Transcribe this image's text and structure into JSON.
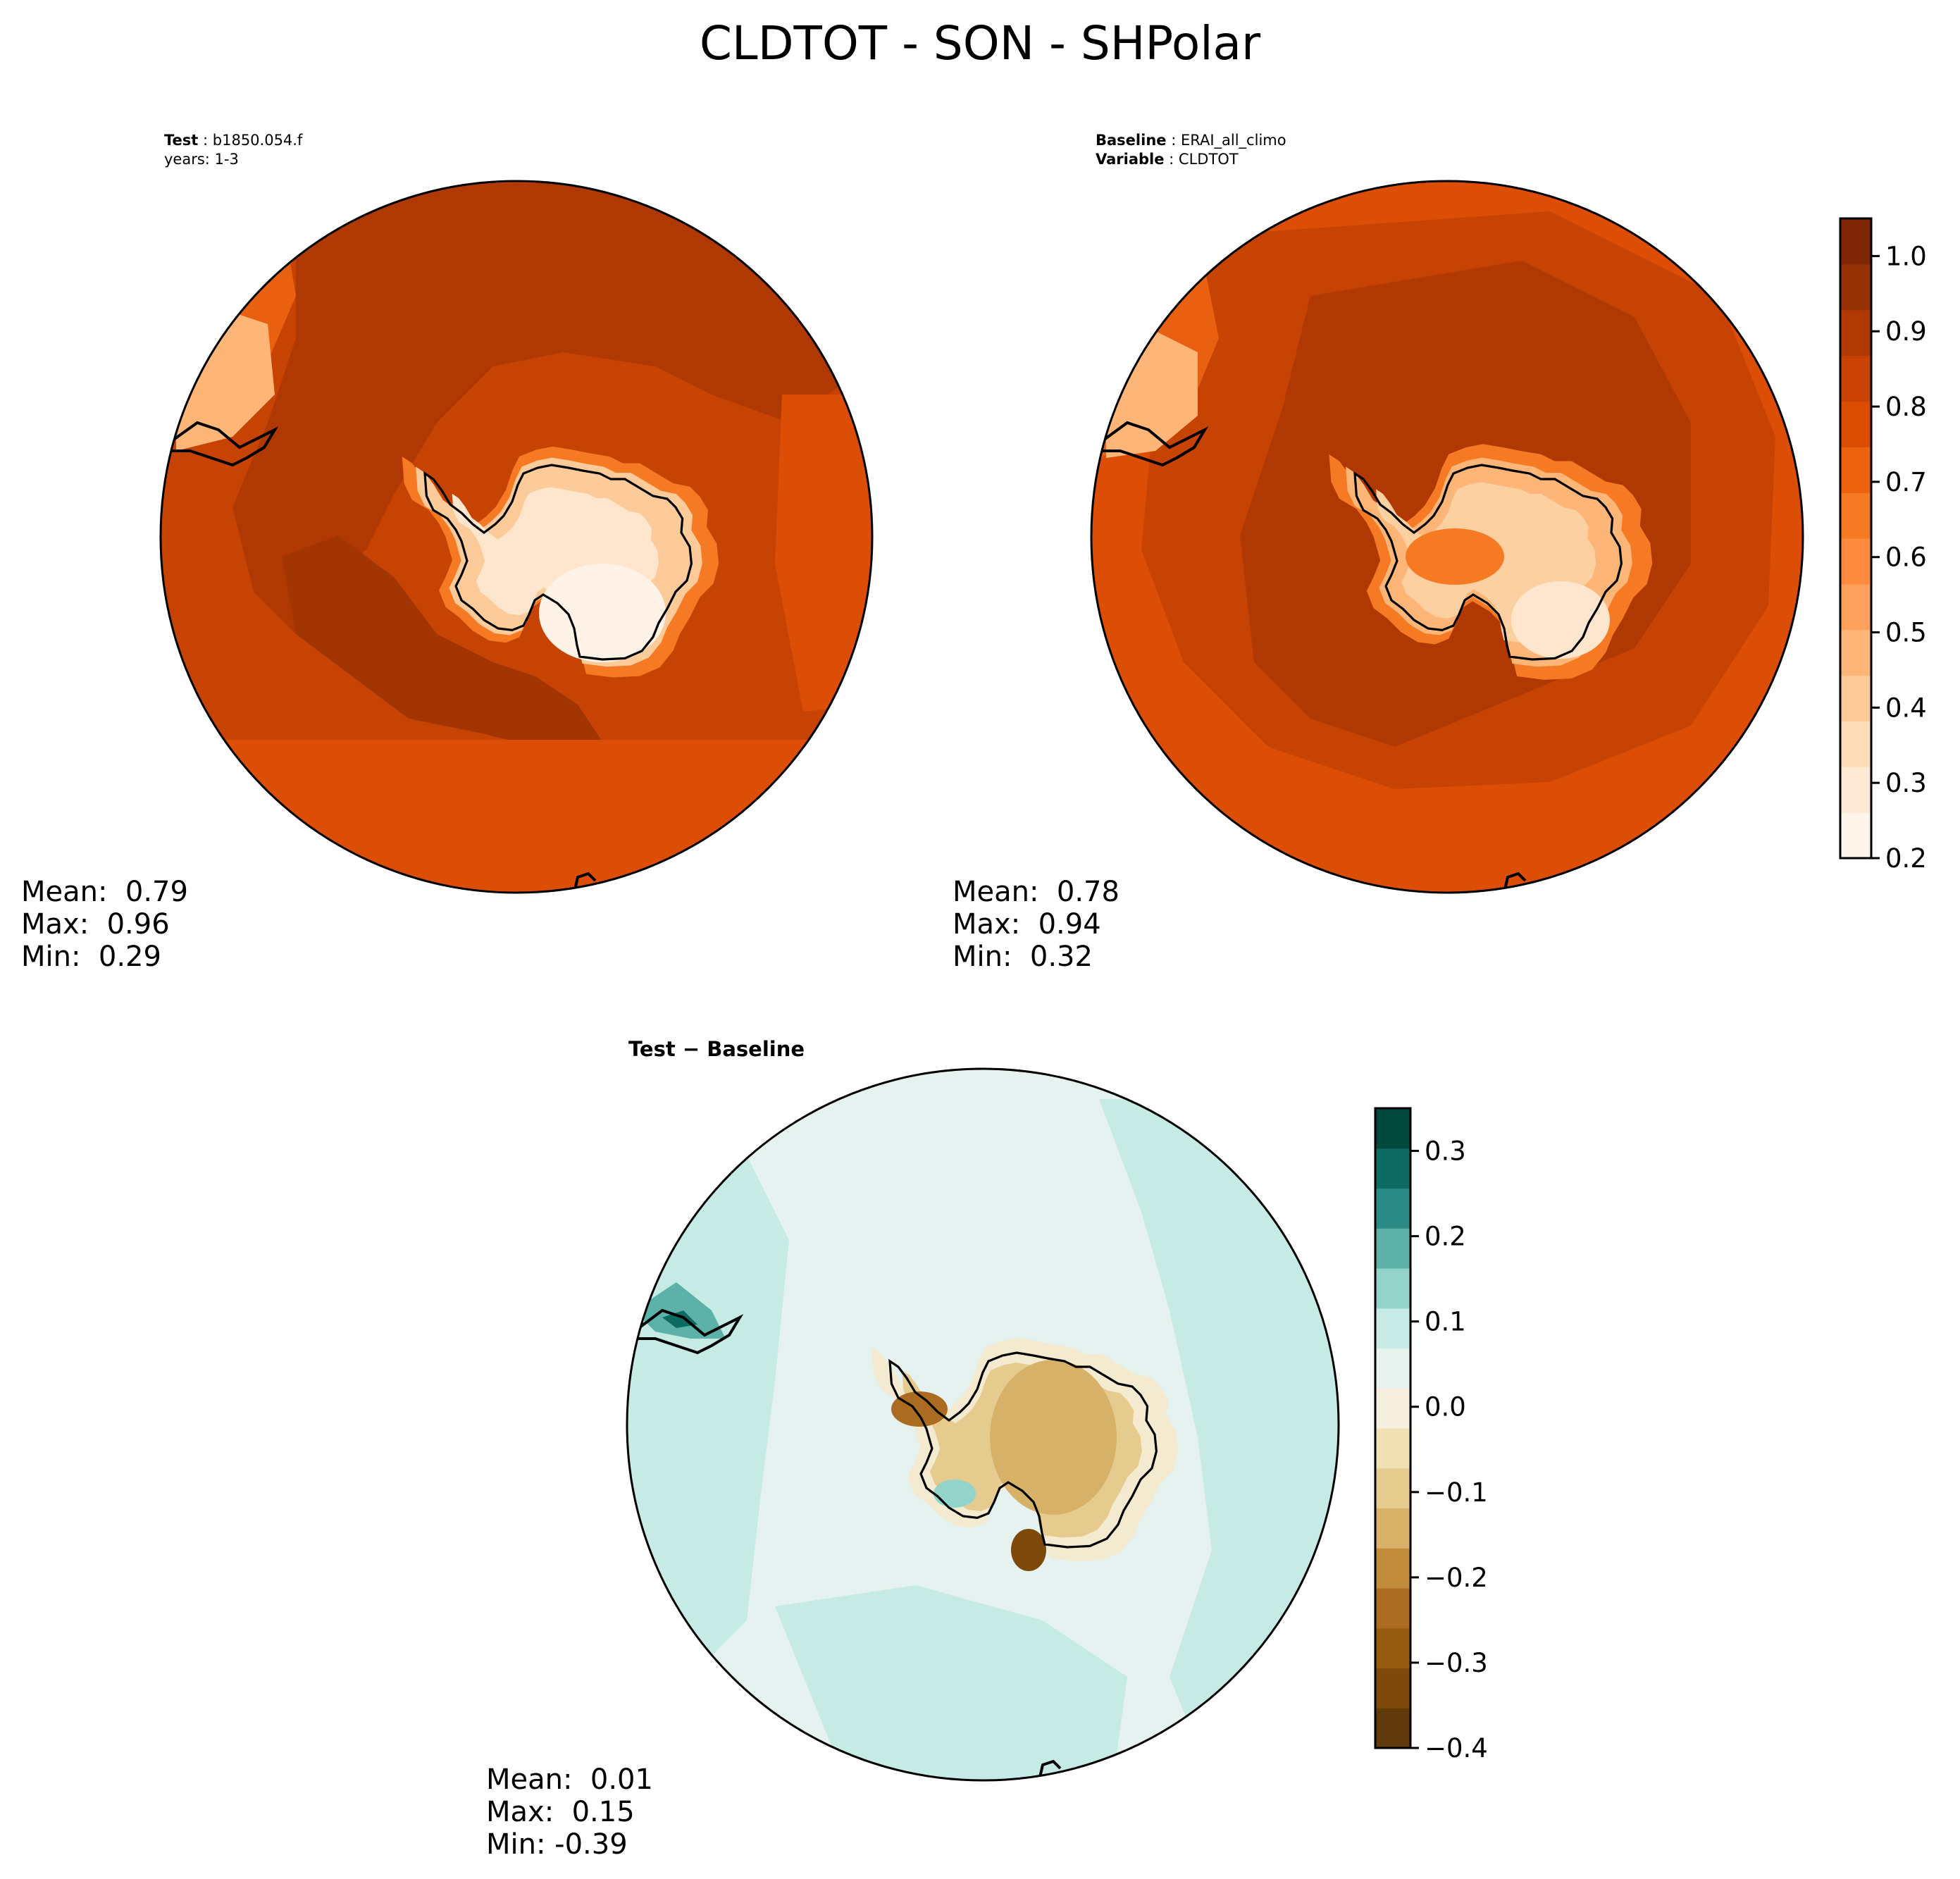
{
  "figure": {
    "title": "CLDTOT - SON - SHPolar"
  },
  "panels": {
    "test": {
      "label_key": "Test",
      "label_value": "b1850.054.f",
      "line2": "years: 1-3",
      "mean": "Mean:  0.79",
      "max": "Max:  0.96",
      "min": "Min:  0.29"
    },
    "baseline": {
      "label_key": "Baseline",
      "label_value": "ERAI_all_climo",
      "line2_key": "Variable",
      "line2_value": "CLDTOT",
      "mean": "Mean:  0.78",
      "max": "Max:  0.94",
      "min": "Min:  0.32"
    },
    "diff": {
      "title_a": "Test",
      "title_sep": " − ",
      "title_b": "Baseline",
      "mean": "Mean:  0.01",
      "max": "Max:  0.15",
      "min": "Min: -0.39"
    }
  },
  "chart_data": [
    {
      "type": "heatmap",
      "name": "Test",
      "projection": "south-polar-stereographic",
      "field": "CLDTOT",
      "mean": 0.79,
      "max": 0.96,
      "min": 0.29,
      "colormap": "Oranges",
      "vlim": [
        0.2,
        1.05
      ]
    },
    {
      "type": "heatmap",
      "name": "Baseline",
      "projection": "south-polar-stereographic",
      "field": "CLDTOT",
      "mean": 0.78,
      "max": 0.94,
      "min": 0.32,
      "colormap": "Oranges",
      "vlim": [
        0.2,
        1.05
      ]
    },
    {
      "type": "heatmap",
      "name": "Test - Baseline",
      "projection": "south-polar-stereographic",
      "field": "CLDTOT difference",
      "mean": 0.01,
      "max": 0.15,
      "min": -0.39,
      "colormap": "BrBG",
      "vlim": [
        -0.4,
        0.35
      ]
    }
  ],
  "colorbars": {
    "main": {
      "ticks": [
        "0.2",
        "0.3",
        "0.4",
        "0.5",
        "0.6",
        "0.7",
        "0.8",
        "0.9",
        "1.0"
      ],
      "tick_values": [
        0.2,
        0.3,
        0.4,
        0.5,
        0.6,
        0.7,
        0.8,
        0.9,
        1.0
      ],
      "vmin": 0.2,
      "vmax": 1.05,
      "colors": [
        "#fff5eb",
        "#fee9d4",
        "#fedcba",
        "#fdca99",
        "#fdb678",
        "#fda05b",
        "#fd8b3d",
        "#f67924",
        "#ec620f",
        "#dc4c03",
        "#c94103",
        "#b03903",
        "#953104",
        "#7f2704"
      ]
    },
    "diff": {
      "ticks": [
        "−0.4",
        "−0.3",
        "−0.2",
        "−0.1",
        "0.0",
        "0.1",
        "0.2",
        "0.3"
      ],
      "tick_values": [
        -0.4,
        -0.3,
        -0.2,
        -0.1,
        0.0,
        0.1,
        0.2,
        0.3
      ],
      "vmin": -0.4,
      "vmax": 0.35,
      "colors": [
        "#613a0b",
        "#7d4a0c",
        "#955a10",
        "#ab6b20",
        "#c18b3c",
        "#d7b167",
        "#e5cc8e",
        "#f0e0b4",
        "#f6efdf",
        "#e8f2ef",
        "#c8ebe5",
        "#92d4c9",
        "#5cb2a8",
        "#2b8a83",
        "#0d6b61",
        "#01493d"
      ]
    }
  },
  "colors": {
    "ocean_high": "#b43b03",
    "ocean_mid": "#c74304",
    "ocean_low": "#dc4d05",
    "ice_pale": "#fdd0a2",
    "ice_white": "#fff2e6",
    "diff_base": "#e6f2ef",
    "diff_pos": "#c6ebe4",
    "diff_brown": "#c79a4e",
    "coast": "#000000"
  }
}
